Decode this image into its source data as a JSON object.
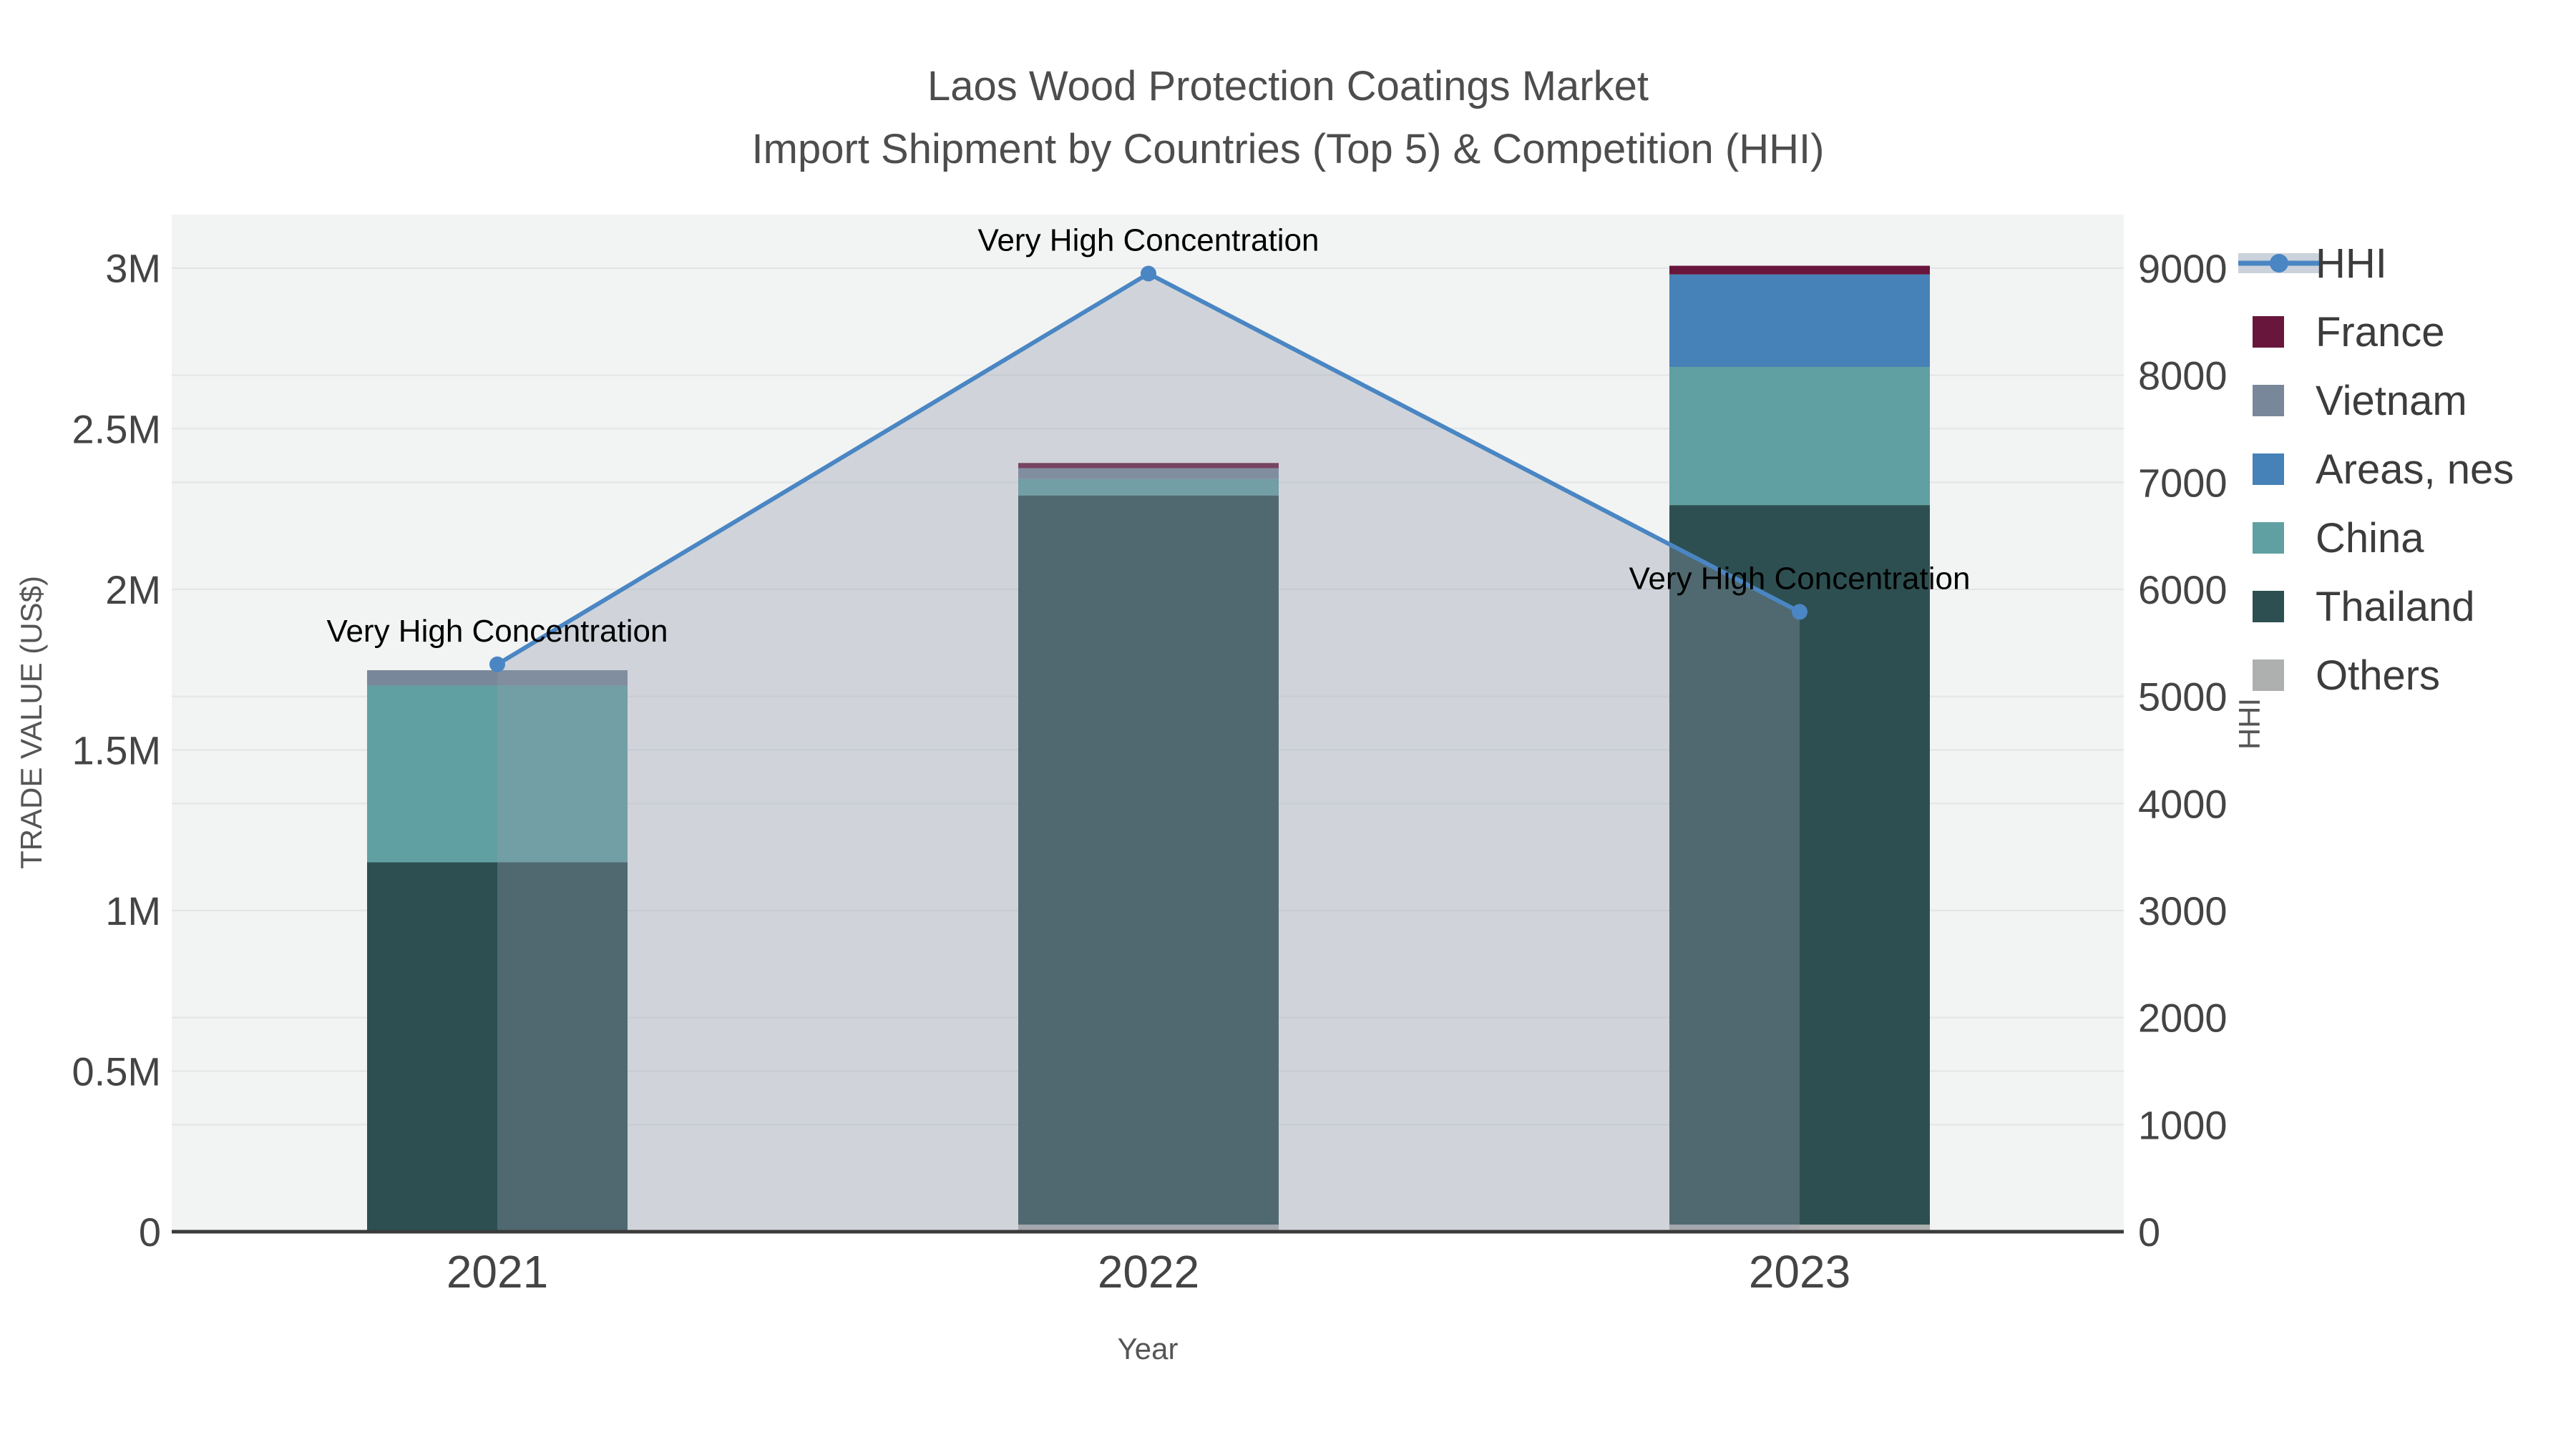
{
  "title": {
    "line1": "Laos Wood Protection Coatings Market",
    "line2": "Import Shipment by Countries (Top 5) & Competition (HHI)"
  },
  "axes": {
    "x": {
      "title": "Year"
    },
    "y_left": {
      "title": "TRADE VALUE (US$)",
      "tick_labels": [
        "0",
        "0.5M",
        "1M",
        "1.5M",
        "2M",
        "2.5M",
        "3M"
      ],
      "tick_values": [
        0,
        500000,
        1000000,
        1500000,
        2000000,
        2500000,
        3000000
      ]
    },
    "y_right": {
      "title": "HHI",
      "tick_labels": [
        "0",
        "1000",
        "2000",
        "3000",
        "4000",
        "5000",
        "6000",
        "7000",
        "8000",
        "9000"
      ],
      "tick_values": [
        0,
        1000,
        2000,
        3000,
        4000,
        5000,
        6000,
        7000,
        8000,
        9000
      ]
    }
  },
  "legend": [
    {
      "label": "HHI",
      "type": "line",
      "color": "#4a86c3"
    },
    {
      "label": "France",
      "type": "swatch",
      "color": "#69163c"
    },
    {
      "label": "Vietnam",
      "type": "swatch",
      "color": "#78889a"
    },
    {
      "label": "Areas, nes",
      "type": "swatch",
      "color": "#4681b8"
    },
    {
      "label": "China",
      "type": "swatch",
      "color": "#61a0a2"
    },
    {
      "label": "Thailand",
      "type": "swatch",
      "color": "#2d4f51"
    },
    {
      "label": "Others",
      "type": "swatch",
      "color": "#aeb0b0"
    }
  ],
  "chart_data": {
    "type": "bar",
    "subtype": "stacked-bars-with-line",
    "categories": [
      "2021",
      "2022",
      "2023"
    ],
    "series": [
      {
        "name": "Others",
        "color": "#aeb0b0",
        "values": [
          0,
          22000,
          22000
        ]
      },
      {
        "name": "Thailand",
        "color": "#2d4f51",
        "values": [
          1150000,
          2270000,
          2240000
        ]
      },
      {
        "name": "China",
        "color": "#61a0a2",
        "values": [
          550000,
          51000,
          430000
        ]
      },
      {
        "name": "Areas, nes",
        "color": "#4681b8",
        "values": [
          0,
          0,
          288000
        ]
      },
      {
        "name": "Vietnam",
        "color": "#78889a",
        "values": [
          48000,
          34000,
          0
        ]
      },
      {
        "name": "France",
        "color": "#69163c",
        "values": [
          0,
          16000,
          27000
        ]
      }
    ],
    "line_series": {
      "name": "HHI",
      "axis": "right",
      "color": "#4a86c3",
      "fill": "rgba(145,155,172,0.35)",
      "values": [
        5300,
        8950,
        5790
      ]
    },
    "annotations": [
      "Very High Concentration",
      "Very High Concentration",
      "Very High Concentration"
    ],
    "title": "Laos Wood Protection Coatings Market — Import Shipment by Countries (Top 5) & Competition (HHI)",
    "xlabel": "Year",
    "ylabel_left": "TRADE VALUE (US$)",
    "ylabel_right": "HHI",
    "ylim_left": [
      0,
      3185000
    ],
    "ylim_right": [
      0,
      9555
    ],
    "grid": true,
    "legend_position": "right"
  },
  "style": {
    "plot_bg": "#f2f3f3",
    "gridline": "#e3e5e6",
    "axis_line": "#3b3b3b",
    "hhi_band": "#ccd2db"
  }
}
